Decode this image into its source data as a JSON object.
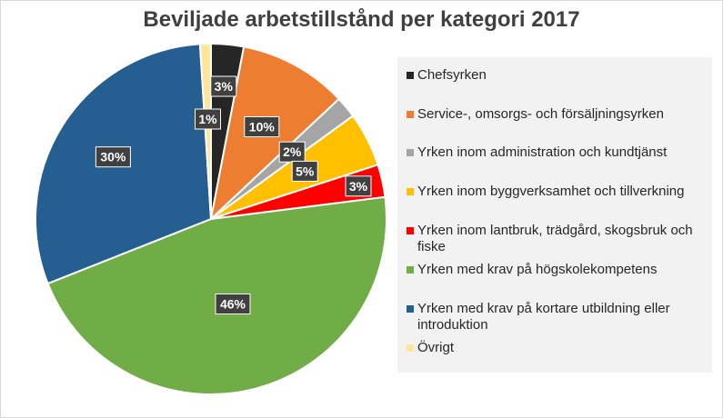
{
  "chart_data": {
    "type": "pie",
    "title": "Beviljade arbetstillstånd per kategori 2017",
    "slices": [
      {
        "name": "Chefsyrken",
        "value": 3,
        "label": "3%",
        "color": "#262626"
      },
      {
        "name": "Service-, omsorgs- och försäljningsyrken",
        "value": 10,
        "label": "10%",
        "color": "#ed7d31"
      },
      {
        "name": "Yrken inom administration och kundtjänst",
        "value": 2,
        "label": "2%",
        "color": "#a5a5a5"
      },
      {
        "name": "Yrken inom byggverksamhet och tillverkning",
        "value": 5,
        "label": "5%",
        "color": "#ffc000"
      },
      {
        "name": "Yrken inom lantbruk, trädgård, skogsbruk och fiske",
        "value": 3,
        "label": "3%",
        "color": "#ff0000"
      },
      {
        "name": "Yrken med krav på  högskolekompetens",
        "value": 46,
        "label": "46%",
        "color": "#70ad47"
      },
      {
        "name": "Yrken med krav på kortare utbildning eller introduktion",
        "value": 30,
        "label": "30%",
        "color": "#255e91"
      },
      {
        "name": "Övrigt",
        "value": 1,
        "label": "1%",
        "color": "#ffe699"
      }
    ],
    "legend_position": "right",
    "data_label_style": "dark boxes"
  }
}
